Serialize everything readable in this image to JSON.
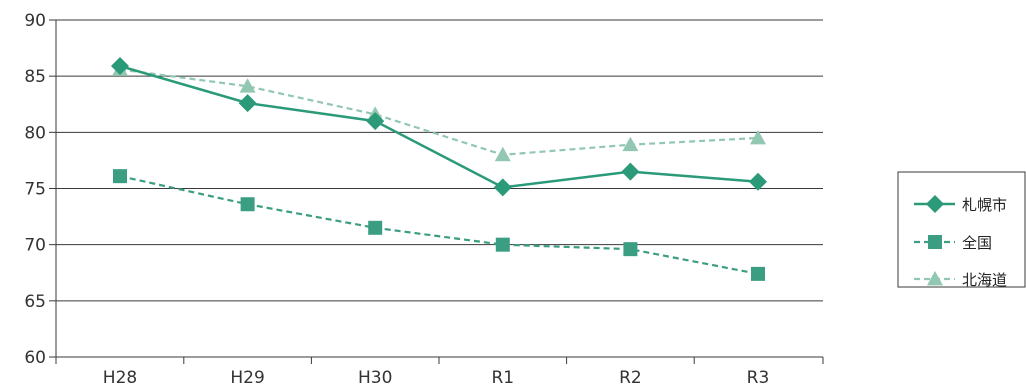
{
  "chart_data": {
    "type": "line",
    "categories": [
      "H28",
      "H29",
      "H30",
      "R1",
      "R2",
      "R3"
    ],
    "ylim": [
      60,
      90
    ],
    "yticks": [
      "60",
      "65",
      "70",
      "75",
      "80",
      "85",
      "90"
    ],
    "grid": true,
    "legend_position": "right",
    "series": [
      {
        "name": "札幌市",
        "values": [
          85.9,
          82.6,
          81.0,
          75.1,
          76.5,
          75.6
        ],
        "color": "#2a9a79",
        "marker": "diamond",
        "dash": "solid"
      },
      {
        "name": "全国",
        "values": [
          76.1,
          73.6,
          71.5,
          70.0,
          69.6,
          67.4
        ],
        "color": "#3b9e82",
        "marker": "square",
        "dash": "dashed"
      },
      {
        "name": "北海道",
        "values": [
          85.6,
          84.1,
          81.6,
          78.0,
          78.9,
          79.5
        ],
        "color": "#92c7b1",
        "marker": "triangle",
        "dash": "dashed"
      }
    ]
  }
}
